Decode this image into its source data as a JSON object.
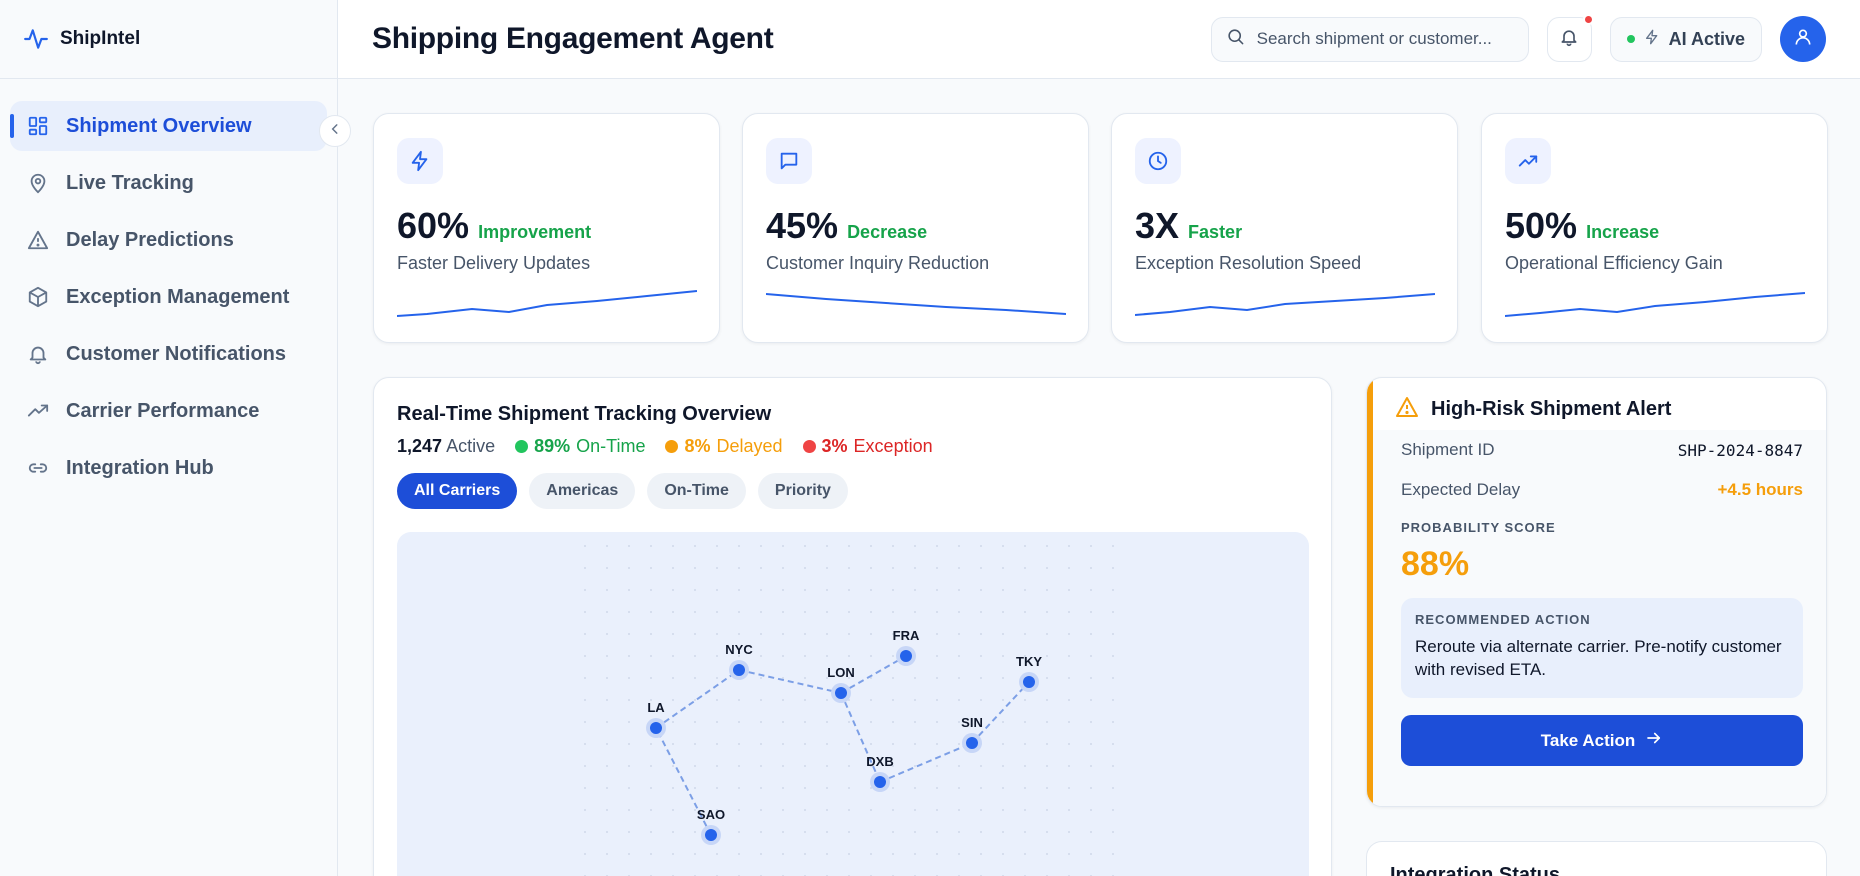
{
  "brand": {
    "name": "ShipIntel"
  },
  "sidebar": {
    "items": [
      {
        "label": "Shipment Overview",
        "icon": "grid-icon"
      },
      {
        "label": "Live Tracking",
        "icon": "map-pin-icon"
      },
      {
        "label": "Delay Predictions",
        "icon": "warning-triangle-icon"
      },
      {
        "label": "Exception Management",
        "icon": "package-icon"
      },
      {
        "label": "Customer Notifications",
        "icon": "bell-icon"
      },
      {
        "label": "Carrier Performance",
        "icon": "trending-up-icon"
      },
      {
        "label": "Integration Hub",
        "icon": "link-icon"
      }
    ],
    "active_index": 0
  },
  "header": {
    "title": "Shipping Engagement Agent",
    "search_placeholder": "Search shipment or customer...",
    "ai_status": "AI Active",
    "has_notification": true
  },
  "stats": [
    {
      "value": "60%",
      "tag": "Improvement",
      "label": "Faster Delivery Updates",
      "icon": "lightning-icon",
      "trend": "up"
    },
    {
      "value": "45%",
      "tag": "Decrease",
      "label": "Customer Inquiry Reduction",
      "icon": "message-icon",
      "trend": "down"
    },
    {
      "value": "3X",
      "tag": "Faster",
      "label": "Exception Resolution Speed",
      "icon": "clock-icon",
      "trend": "up"
    },
    {
      "value": "50%",
      "tag": "Increase",
      "label": "Operational Efficiency Gain",
      "icon": "trending-up-icon",
      "trend": "up"
    }
  ],
  "tracking": {
    "title": "Real-Time Shipment Tracking Overview",
    "active_count": "1,247",
    "active_label": "Active",
    "statuses": [
      {
        "value": "89%",
        "label": "On-Time",
        "color": "#22c55e"
      },
      {
        "value": "8%",
        "label": "Delayed",
        "color": "#f59e0b"
      },
      {
        "value": "3%",
        "label": "Exception",
        "color": "#ef4444"
      }
    ],
    "filters": [
      "All Carriers",
      "Americas",
      "On-Time",
      "Priority"
    ],
    "active_filter": 0,
    "nodes": [
      "LA",
      "NYC",
      "LON",
      "FRA",
      "DXB",
      "SIN",
      "TKY",
      "SAO"
    ],
    "routes": [
      [
        "SAO",
        "LA"
      ],
      [
        "LA",
        "NYC"
      ],
      [
        "NYC",
        "LON"
      ],
      [
        "LON",
        "FRA"
      ],
      [
        "LON",
        "DXB"
      ],
      [
        "DXB",
        "SIN"
      ],
      [
        "SIN",
        "TKY"
      ]
    ]
  },
  "alert": {
    "title": "High-Risk Shipment Alert",
    "shipment_id_label": "Shipment ID",
    "shipment_id": "SHP-2024-8847",
    "delay_label": "Expected Delay",
    "delay": "+4.5 hours",
    "probability_label": "PROBABILITY SCORE",
    "probability": "88%",
    "recommended_label": "RECOMMENDED ACTION",
    "recommended_text": "Reroute via alternate carrier. Pre-notify customer with revised ETA.",
    "action_label": "Take Action"
  },
  "integration": {
    "title": "Integration Status"
  },
  "colors": {
    "accent": "#2563eb",
    "warning": "#f59e0b",
    "success": "#16a34a",
    "danger": "#ef4444"
  }
}
